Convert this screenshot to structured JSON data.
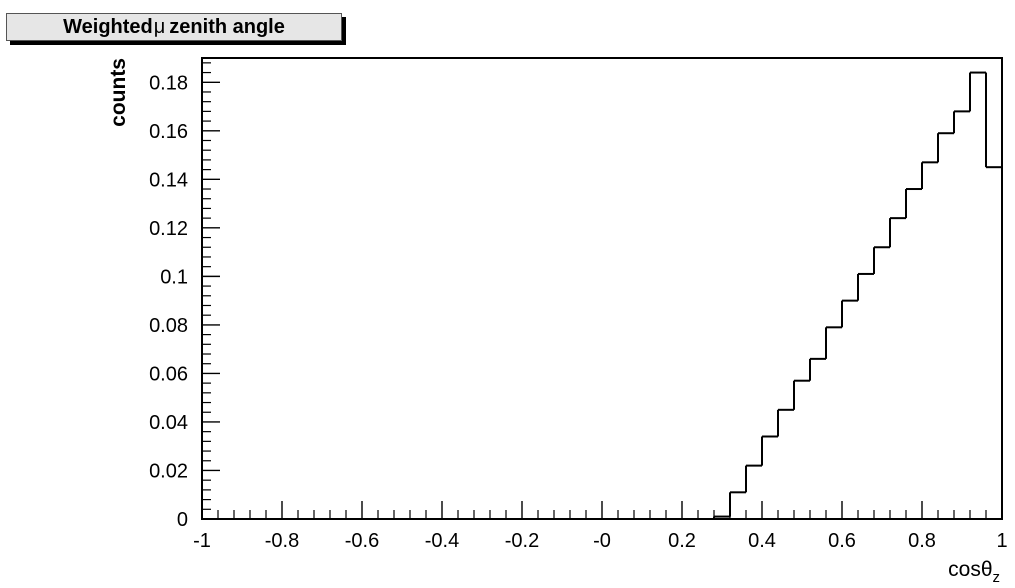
{
  "chart_data": {
    "type": "histogram",
    "title": "Weighted μ zenith angle",
    "title_symbol": "μ",
    "xlabel": "cosθ",
    "xlabel_subscript": "z",
    "ylabel": "counts",
    "xlim": [
      -1,
      1
    ],
    "ylim": [
      0,
      0.19
    ],
    "bin_width": 0.04,
    "bin_edges_start": -1,
    "x_ticks": [
      -1,
      -0.8,
      -0.6,
      -0.4,
      -0.2,
      0,
      0.2,
      0.4,
      0.6,
      0.8,
      1
    ],
    "x_tick_labels": [
      "-1",
      "-0.8",
      "-0.6",
      "-0.4",
      "-0.2",
      "-0",
      "0.2",
      "0.4",
      "0.6",
      "0.8",
      "1"
    ],
    "y_ticks": [
      0,
      0.02,
      0.04,
      0.06,
      0.08,
      0.1,
      0.12,
      0.14,
      0.16,
      0.18
    ],
    "y_tick_labels": [
      "0",
      "0.02",
      "0.04",
      "0.06",
      "0.08",
      "0.1",
      "0.12",
      "0.14",
      "0.16",
      "0.18"
    ],
    "values": [
      0,
      0,
      0,
      0,
      0,
      0,
      0,
      0,
      0,
      0,
      0,
      0,
      0,
      0,
      0,
      0,
      0,
      0,
      0,
      0,
      0,
      0,
      0,
      0,
      0,
      0,
      0,
      0,
      0,
      0,
      0,
      0,
      0.001,
      0.011,
      0.022,
      0.034,
      0.045,
      0.057,
      0.066,
      0.079,
      0.09,
      0.101,
      0.112,
      0.124,
      0.136,
      0.147,
      0.159,
      0.168,
      0.184,
      0.145
    ],
    "line_color": "#000000"
  }
}
